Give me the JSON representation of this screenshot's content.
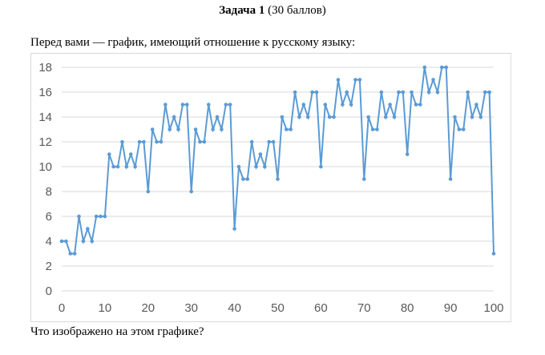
{
  "header": {
    "title_bold": "Задача 1",
    "title_rest": " (30 баллов)"
  },
  "intro_text": "Перед вами — график, имеющий отношение к русскому языку:",
  "question_text": "Что изображено на этом графике?",
  "chart_data": {
    "type": "line",
    "title": "",
    "xlabel": "",
    "ylabel": "",
    "xlim": [
      0,
      100
    ],
    "ylim": [
      0,
      18
    ],
    "xticks": [
      0,
      10,
      20,
      30,
      40,
      50,
      60,
      70,
      80,
      90,
      100
    ],
    "yticks": [
      0,
      2,
      4,
      6,
      8,
      10,
      12,
      14,
      16,
      18
    ],
    "grid": "horizontal",
    "line_color": "#5b9bd5",
    "series": [
      {
        "x": [
          0,
          1,
          2,
          3,
          4,
          5,
          6,
          7,
          8,
          9,
          10,
          11,
          12,
          13,
          14,
          15,
          16,
          17,
          18,
          19,
          20,
          21,
          22,
          23,
          24,
          25,
          26,
          27,
          28,
          29,
          30,
          31,
          32,
          33,
          34,
          35,
          36,
          37,
          38,
          39,
          40,
          41,
          42,
          43,
          44,
          45,
          46,
          47,
          48,
          49,
          50,
          51,
          52,
          53,
          54,
          55,
          56,
          57,
          58,
          59,
          60,
          61,
          62,
          63,
          64,
          65,
          66,
          67,
          68,
          69,
          70,
          71,
          72,
          73,
          74,
          75,
          76,
          77,
          78,
          79,
          80,
          81,
          82,
          83,
          84,
          85,
          86,
          87,
          88,
          89,
          90,
          91,
          92,
          93,
          94,
          95,
          96,
          97,
          98,
          99,
          100
        ],
        "values": [
          4,
          4,
          3,
          3,
          6,
          4,
          5,
          4,
          6,
          6,
          6,
          11,
          10,
          10,
          12,
          10,
          11,
          10,
          12,
          12,
          8,
          13,
          12,
          12,
          15,
          13,
          14,
          13,
          15,
          15,
          8,
          13,
          12,
          12,
          15,
          13,
          14,
          13,
          15,
          15,
          5,
          10,
          9,
          9,
          12,
          10,
          11,
          10,
          12,
          12,
          9,
          14,
          13,
          13,
          16,
          14,
          15,
          14,
          16,
          16,
          10,
          15,
          14,
          14,
          17,
          15,
          16,
          15,
          17,
          17,
          9,
          14,
          13,
          13,
          16,
          14,
          15,
          14,
          16,
          16,
          11,
          16,
          15,
          15,
          18,
          16,
          17,
          16,
          18,
          18,
          9,
          14,
          13,
          13,
          16,
          14,
          15,
          14,
          16,
          16,
          3
        ]
      }
    ]
  }
}
